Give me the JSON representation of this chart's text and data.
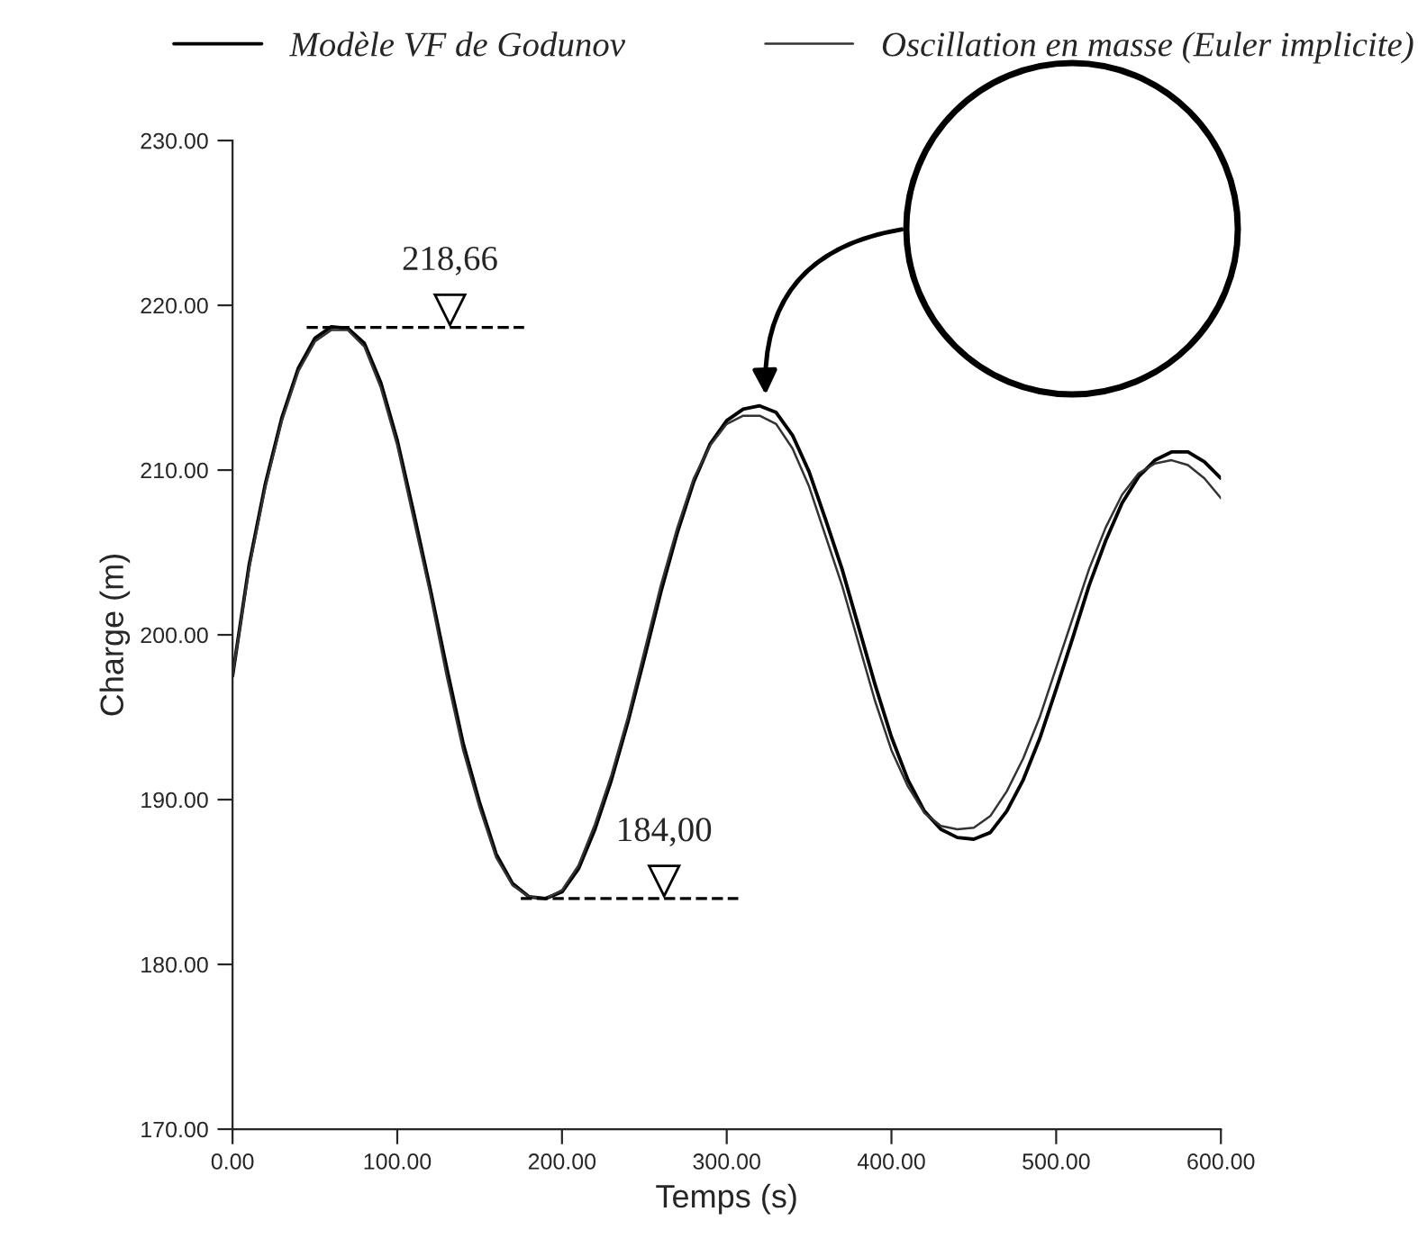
{
  "chart_data": {
    "type": "line",
    "xlabel": "Temps (s)",
    "ylabel": "Charge (m)",
    "x": [
      0,
      10,
      20,
      30,
      40,
      50,
      60,
      70,
      80,
      90,
      100,
      110,
      120,
      130,
      140,
      150,
      160,
      170,
      180,
      190,
      200,
      210,
      220,
      230,
      240,
      250,
      260,
      270,
      280,
      290,
      300,
      310,
      320,
      330,
      340,
      350,
      360,
      370,
      380,
      390,
      400,
      410,
      420,
      430,
      440,
      450,
      460,
      470,
      480,
      490,
      500,
      510,
      520,
      530,
      540,
      550,
      560,
      570,
      580,
      590,
      600
    ],
    "series": [
      {
        "name": "Modèle VF de Godunov",
        "color": "#000000",
        "values": [
          197.5,
          204.2,
          209.2,
          213.2,
          216.2,
          218,
          218.7,
          218.6,
          217.7,
          215.3,
          211.8,
          207.4,
          202.8,
          198,
          193.4,
          189.8,
          186.7,
          184.9,
          184.1,
          184.0,
          184.4,
          185.8,
          188.2,
          191.2,
          194.7,
          198.6,
          202.6,
          206.2,
          209.3,
          211.6,
          213,
          213.7,
          213.9,
          213.5,
          212.1,
          209.9,
          207,
          204,
          200.5,
          197,
          193.8,
          191.2,
          189.3,
          188.2,
          187.7,
          187.6,
          188,
          189.3,
          191.2,
          193.7,
          196.7,
          199.8,
          203,
          205.7,
          208,
          209.6,
          210.6,
          211.1,
          211.1,
          210.5,
          209.5
        ]
      },
      {
        "name": "Oscillation en masse (Euler implicite)",
        "color": "#333333",
        "values": [
          197.5,
          204,
          209,
          213,
          216,
          217.8,
          218.5,
          218.5,
          217.5,
          215,
          211.5,
          207,
          202.5,
          197.5,
          193,
          189.5,
          186.5,
          184.8,
          184.1,
          184.0,
          184.5,
          186,
          188.5,
          191.5,
          195,
          199,
          203,
          206.5,
          209.5,
          211.5,
          212.8,
          213.3,
          213.3,
          212.8,
          211.3,
          209,
          206,
          203,
          199.5,
          196,
          193,
          190.8,
          189.2,
          188.4,
          188.2,
          188.3,
          189,
          190.5,
          192.5,
          195,
          198,
          201,
          204,
          206.5,
          208.5,
          209.8,
          210.4,
          210.6,
          210.3,
          209.5,
          208.3
        ]
      }
    ],
    "xlim": [
      0,
      600
    ],
    "ylim": [
      170,
      230
    ],
    "xticks": [
      {
        "value": 0,
        "label": "0.00"
      },
      {
        "value": 100,
        "label": "100.00"
      },
      {
        "value": 200,
        "label": "200.00"
      },
      {
        "value": 300,
        "label": "300.00"
      },
      {
        "value": 400,
        "label": "400.00"
      },
      {
        "value": 500,
        "label": "500.00"
      },
      {
        "value": 600,
        "label": "600.00"
      }
    ],
    "yticks": [
      {
        "value": 170,
        "label": "170.00"
      },
      {
        "value": 180,
        "label": "180.00"
      },
      {
        "value": 190,
        "label": "190.00"
      },
      {
        "value": 200,
        "label": "200.00"
      },
      {
        "value": 210,
        "label": "210.00"
      },
      {
        "value": 220,
        "label": "220.00"
      },
      {
        "value": 230,
        "label": "230.00"
      }
    ],
    "annotations": [
      {
        "text": "218,66",
        "x": 60,
        "y": 218.66
      },
      {
        "text": "184,00",
        "x": 190,
        "y": 184.0
      }
    ],
    "grid": false,
    "legend": "top",
    "marker": "none",
    "line_style": "solid"
  }
}
